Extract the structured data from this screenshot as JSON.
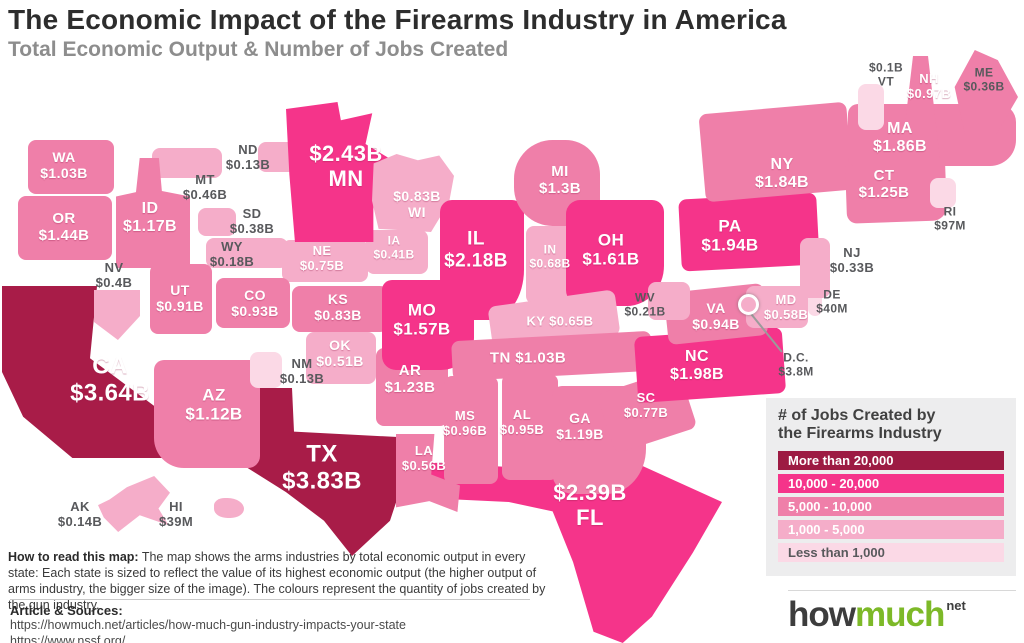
{
  "header": {
    "title": "The Economic Impact of the Firearms Industry in America",
    "subtitle": "Total Economic Output & Number of Jobs Created"
  },
  "legend": {
    "title_line1": "# of Jobs Created by",
    "title_line2": "the Firearms Industry",
    "items": [
      {
        "label": "More than 20,000",
        "color": "#9d1b43",
        "text": "#ffffff"
      },
      {
        "label": "10,000 - 20,000",
        "color": "#f5348a",
        "text": "#ffffff"
      },
      {
        "label": "5,000 - 10,000",
        "color": "#ef7fa9",
        "text": "#ffffff"
      },
      {
        "label": "1,000 - 5,000",
        "color": "#f5adc9",
        "text": "#ffffff"
      },
      {
        "label": "Less than 1,000",
        "color": "#fbd9e6",
        "text": "#58595c"
      }
    ]
  },
  "footer": {
    "how_to_label": "How to read this map:",
    "how_to_text": " The map shows the arms industries by total economic output in every state: Each state is sized to reflect the value of its highest economic output (the higher output of arms industry, the bigger size of the image). The colours represent the quantity of jobs created by the gun industry.",
    "sources_label": "Article & Sources:",
    "source_urls": [
      "https://howmuch.net/articles/how-much-gun-industry-impacts-your-state",
      "https://www.nssf.org/"
    ]
  },
  "logo": {
    "part1": "how",
    "part2": "much",
    "part3": "net",
    "green": "#7db928"
  },
  "colors": {
    "tier1": "#a81c48",
    "tier2": "#f5348a",
    "tier3": "#ef7fa9",
    "tier4": "#f5adc9",
    "tier5": "#fbd9e6",
    "label_gray": "#58595c"
  },
  "chart_data": {
    "type": "cartogram_map",
    "title": "The Economic Impact of the Firearms Industry in America",
    "value_meaning": "Total economic output of the firearms industry per state",
    "color_meaning": "Number of jobs created by the firearms industry",
    "jobs_tiers": {
      "tier1": "More than 20,000",
      "tier2": "10,000 - 20,000",
      "tier3": "5,000 - 10,000",
      "tier4": "1,000 - 5,000",
      "tier5": "Less than 1,000"
    },
    "states": [
      {
        "abbr": "AK",
        "value": "$0.14B",
        "tier": "tier4",
        "shape": "ak",
        "block": [
          98,
          476,
          72,
          56
        ],
        "label": [
          80,
          515
        ],
        "size": 13,
        "lines": [
          "AK",
          "$0.14B"
        ],
        "lc": "g"
      },
      {
        "abbr": "HI",
        "value": "$39M",
        "tier": "tier4",
        "shape": "hi",
        "block": [
          214,
          498,
          30,
          20
        ],
        "label": [
          176,
          515
        ],
        "size": 13,
        "lines": [
          "HI",
          "$39M"
        ],
        "lc": "g"
      },
      {
        "abbr": "FL",
        "value": "$2.39B",
        "tier": "tier2",
        "shape": "fl",
        "block": [
          430,
          455,
          292,
          188
        ],
        "label": [
          590,
          505
        ],
        "size": 22,
        "lines": [
          "$2.39B",
          "FL"
        ],
        "lc": "w"
      },
      {
        "abbr": "TX",
        "value": "$3.83B",
        "tier": "tier1",
        "shape": "tx",
        "block": [
          230,
          388,
          200,
          168
        ],
        "label": [
          322,
          468
        ],
        "size": 24,
        "lines": [
          "TX",
          "$3.83B"
        ],
        "lc": "w"
      },
      {
        "abbr": "CA",
        "value": "$3.64B",
        "tier": "tier1",
        "shape": "ca",
        "block": [
          2,
          286,
          176,
          172
        ],
        "label": [
          110,
          380
        ],
        "size": 24,
        "lines": [
          "CA",
          "$3.64B"
        ],
        "lc": "w"
      },
      {
        "abbr": "NV",
        "value": "$0.4B",
        "tier": "tier4",
        "shape": "nv",
        "block": [
          94,
          290,
          46,
          50
        ],
        "label": [
          114,
          276
        ],
        "size": 13,
        "lines": [
          "NV",
          "$0.4B"
        ],
        "lc": "g"
      },
      {
        "abbr": "AZ",
        "value": "$1.12B",
        "tier": "tier3",
        "shape": "az",
        "block": [
          154,
          360,
          106,
          108
        ],
        "label": [
          214,
          405
        ],
        "size": 17,
        "lines": [
          "AZ",
          "$1.12B"
        ],
        "lc": "w"
      },
      {
        "abbr": "NM",
        "value": "$0.13B",
        "tier": "tier5",
        "block": [
          250,
          352,
          32,
          36
        ],
        "label": [
          302,
          372
        ],
        "size": 13,
        "lines": [
          "NM",
          "$0.13B"
        ],
        "lc": "g"
      },
      {
        "abbr": "OK",
        "value": "$0.51B",
        "tier": "tier4",
        "block": [
          306,
          332,
          70,
          52
        ],
        "label": [
          340,
          354
        ],
        "size": 14,
        "lines": [
          "OK",
          "$0.51B"
        ],
        "lc": "w"
      },
      {
        "abbr": "AR",
        "value": "$1.23B",
        "tier": "tier3",
        "block": [
          376,
          348,
          72,
          78
        ],
        "label": [
          410,
          379
        ],
        "size": 15,
        "lines": [
          "AR",
          "$1.23B"
        ],
        "lc": "w"
      },
      {
        "abbr": "KS",
        "value": "$0.83B",
        "tier": "tier3",
        "block": [
          292,
          286,
          96,
          46
        ],
        "label": [
          338,
          308
        ],
        "size": 14,
        "lines": [
          "KS",
          "$0.83B"
        ],
        "lc": "w"
      },
      {
        "abbr": "NE",
        "value": "$0.75B",
        "tier": "tier4",
        "block": [
          282,
          240,
          86,
          42
        ],
        "label": [
          322,
          259
        ],
        "size": 13,
        "lines": [
          "NE",
          "$0.75B"
        ],
        "lc": "w"
      },
      {
        "abbr": "IA",
        "value": "$0.41B",
        "tier": "tier4",
        "block": [
          366,
          230,
          62,
          44
        ],
        "label": [
          394,
          248
        ],
        "size": 12,
        "lines": [
          "IA",
          "$0.41B"
        ],
        "lc": "w"
      },
      {
        "abbr": "WA",
        "value": "$1.03B",
        "tier": "tier3",
        "block": [
          28,
          140,
          86,
          54
        ],
        "label": [
          64,
          166
        ],
        "size": 14,
        "lines": [
          "WA",
          "$1.03B"
        ],
        "lc": "w"
      },
      {
        "abbr": "OR",
        "value": "$1.44B",
        "tier": "tier3",
        "block": [
          18,
          196,
          94,
          64
        ],
        "label": [
          64,
          227
        ],
        "size": 15,
        "lines": [
          "OR",
          "$1.44B"
        ],
        "lc": "w"
      },
      {
        "abbr": "MT",
        "value": "$0.46B",
        "tier": "tier4",
        "block": [
          152,
          148,
          70,
          30
        ],
        "label": [
          205,
          188
        ],
        "size": 13,
        "lines": [
          "MT",
          "$0.46B"
        ],
        "lc": "g"
      },
      {
        "abbr": "ND",
        "value": "$0.13B",
        "tier": "tier4",
        "block": [
          258,
          142,
          40,
          30
        ],
        "label": [
          248,
          158
        ],
        "size": 13,
        "lines": [
          "ND",
          "$0.13B"
        ],
        "lc": "g"
      },
      {
        "abbr": "SD",
        "value": "$0.38B",
        "tier": "tier4",
        "block": [
          198,
          208,
          38,
          28
        ],
        "label": [
          252,
          222
        ],
        "size": 13,
        "lines": [
          "SD",
          "$0.38B"
        ],
        "lc": "g"
      },
      {
        "abbr": "WY",
        "value": "$0.18B",
        "tier": "tier4",
        "block": [
          206,
          238,
          82,
          30
        ],
        "label": [
          232,
          255
        ],
        "size": 13,
        "lines": [
          "WY",
          "$0.18B"
        ],
        "lc": "g"
      },
      {
        "abbr": "UT",
        "value": "$0.91B",
        "tier": "tier3",
        "block": [
          150,
          264,
          62,
          70
        ],
        "label": [
          180,
          299
        ],
        "size": 14,
        "lines": [
          "UT",
          "$0.91B"
        ],
        "lc": "w"
      },
      {
        "abbr": "CO",
        "value": "$0.93B",
        "tier": "tier3",
        "block": [
          216,
          278,
          74,
          50
        ],
        "label": [
          255,
          304
        ],
        "size": 14,
        "lines": [
          "CO",
          "$0.93B"
        ],
        "lc": "w"
      },
      {
        "abbr": "ID",
        "value": "$1.17B",
        "tier": "tier3",
        "shape": "id",
        "block": [
          116,
          158,
          74,
          110
        ],
        "label": [
          150,
          218
        ],
        "size": 16,
        "lines": [
          "ID",
          "$1.17B"
        ],
        "lc": "w"
      },
      {
        "abbr": "MN",
        "value": "$2.43B",
        "tier": "tier2",
        "shape": "mn",
        "block": [
          286,
          102,
          112,
          140
        ],
        "label": [
          346,
          166
        ],
        "size": 22,
        "lines": [
          "$2.43B",
          "MN"
        ],
        "lc": "w"
      },
      {
        "abbr": "WI",
        "value": "$0.83B",
        "tier": "tier4",
        "shape": "wi",
        "block": [
          372,
          154,
          82,
          78
        ],
        "label": [
          417,
          205
        ],
        "size": 14,
        "lines": [
          "$0.83B",
          "WI"
        ],
        "lc": "w"
      },
      {
        "abbr": "IL",
        "value": "$2.18B",
        "tier": "tier2",
        "shape": "il",
        "block": [
          440,
          200,
          84,
          120
        ],
        "label": [
          476,
          250
        ],
        "size": 19,
        "lines": [
          "IL",
          "$2.18B"
        ],
        "lc": "w"
      },
      {
        "abbr": "MI",
        "value": "$1.3B",
        "tier": "tier3",
        "shape": "mi",
        "block": [
          514,
          140,
          86,
          86
        ],
        "label": [
          560,
          180
        ],
        "size": 15,
        "lines": [
          "MI",
          "$1.3B"
        ],
        "lc": "w"
      },
      {
        "abbr": "IN",
        "value": "$0.68B",
        "tier": "tier4",
        "block": [
          526,
          226,
          50,
          78
        ],
        "label": [
          550,
          257
        ],
        "size": 12,
        "lines": [
          "IN",
          "$0.68B"
        ],
        "lc": "w"
      },
      {
        "abbr": "MO",
        "value": "$1.57B",
        "tier": "tier2",
        "shape": "mo",
        "block": [
          382,
          280,
          92,
          90
        ],
        "label": [
          422,
          320
        ],
        "size": 17,
        "lines": [
          "MO",
          "$1.57B"
        ],
        "lc": "w"
      },
      {
        "abbr": "LA",
        "value": "$0.56B",
        "tier": "tier3",
        "shape": "la",
        "block": [
          396,
          434,
          64,
          78
        ],
        "label": [
          424,
          459
        ],
        "size": 13,
        "lines": [
          "LA",
          "$0.56B"
        ],
        "lc": "w"
      },
      {
        "abbr": "OH",
        "value": "$1.61B",
        "tier": "tier2",
        "shape": "oh",
        "block": [
          566,
          200,
          98,
          106
        ],
        "label": [
          611,
          250
        ],
        "size": 17,
        "lines": [
          "OH",
          "$1.61B"
        ],
        "lc": "w"
      },
      {
        "abbr": "KY",
        "value": "$0.65B",
        "tier": "tier4",
        "rot": -8,
        "block": [
          490,
          298,
          128,
          46
        ],
        "label": [
          560,
          322
        ],
        "size": 13,
        "lines": [
          "KY $0.65B"
        ],
        "lc": "w"
      },
      {
        "abbr": "TN",
        "value": "$1.03B",
        "tier": "tier3",
        "rot": -3,
        "block": [
          452,
          336,
          200,
          40
        ],
        "label": [
          528,
          358
        ],
        "size": 15,
        "lines": [
          "TN $1.03B"
        ],
        "lc": "w"
      },
      {
        "abbr": "MS",
        "value": "$0.96B",
        "tier": "tier3",
        "block": [
          444,
          376,
          54,
          108
        ],
        "label": [
          465,
          424
        ],
        "size": 13,
        "lines": [
          "MS",
          "$0.96B"
        ],
        "lc": "w"
      },
      {
        "abbr": "AL",
        "value": "$0.95B",
        "tier": "tier3",
        "block": [
          502,
          374,
          56,
          106
        ],
        "label": [
          522,
          423
        ],
        "size": 13,
        "lines": [
          "AL",
          "$0.95B"
        ],
        "lc": "w"
      },
      {
        "abbr": "GA",
        "value": "$1.19B",
        "tier": "tier3",
        "shape": "ga",
        "block": [
          552,
          386,
          94,
          108
        ],
        "label": [
          580,
          427
        ],
        "size": 14,
        "lines": [
          "GA",
          "$1.19B"
        ],
        "lc": "w"
      },
      {
        "abbr": "SC",
        "value": "$0.77B",
        "tier": "tier3",
        "rot": -18,
        "block": [
          604,
          380,
          86,
          62
        ],
        "label": [
          646,
          406
        ],
        "size": 13,
        "lines": [
          "SC",
          "$0.77B"
        ],
        "lc": "w"
      },
      {
        "abbr": "NC",
        "value": "$1.98B",
        "tier": "tier2",
        "rot": -4,
        "block": [
          636,
          332,
          148,
          66
        ],
        "label": [
          697,
          366
        ],
        "size": 16,
        "lines": [
          "NC",
          "$1.98B"
        ],
        "lc": "w"
      },
      {
        "abbr": "VA",
        "value": "$0.94B",
        "tier": "tier3",
        "rot": -6,
        "block": [
          666,
          288,
          100,
          52
        ],
        "label": [
          716,
          317
        ],
        "size": 14,
        "lines": [
          "VA",
          "$0.94B"
        ],
        "lc": "w"
      },
      {
        "abbr": "WV",
        "value": "$0.21B",
        "tier": "tier4",
        "block": [
          648,
          282,
          42,
          38
        ],
        "label": [
          645,
          305
        ],
        "size": 12,
        "lines": [
          "WV",
          "$0.21B"
        ],
        "lc": "g"
      },
      {
        "abbr": "PA",
        "value": "$1.94B",
        "tier": "tier2",
        "rot": -3,
        "block": [
          680,
          196,
          138,
          72
        ],
        "label": [
          730,
          236
        ],
        "size": 17,
        "lines": [
          "PA",
          "$1.94B"
        ],
        "lc": "w"
      },
      {
        "abbr": "MD",
        "value": "$0.58B",
        "tier": "tier4",
        "block": [
          746,
          286,
          62,
          42
        ],
        "label": [
          786,
          308
        ],
        "size": 13,
        "lines": [
          "MD",
          "$0.58B"
        ],
        "lc": "w"
      },
      {
        "abbr": "DE",
        "value": "$40M",
        "tier": "tier5",
        "block": [
          808,
          282,
          14,
          34
        ],
        "label": [
          832,
          302
        ],
        "size": 12,
        "lines": [
          "DE",
          "$40M"
        ],
        "lc": "g"
      },
      {
        "abbr": "NJ",
        "value": "$0.33B",
        "tier": "tier4",
        "block": [
          800,
          238,
          30,
          60
        ],
        "label": [
          852,
          261
        ],
        "size": 13,
        "lines": [
          "NJ",
          "$0.33B"
        ],
        "lc": "g"
      },
      {
        "abbr": "NY",
        "value": "$1.84B",
        "tier": "tier3",
        "rot": -5,
        "block": [
          702,
          108,
          148,
          88
        ],
        "label": [
          782,
          174
        ],
        "size": 16,
        "lines": [
          "NY",
          "$1.84B"
        ],
        "lc": "w"
      },
      {
        "abbr": "CT",
        "value": "$1.25B",
        "tier": "tier3",
        "shape": "ct",
        "rot": -2,
        "block": [
          846,
          158,
          100,
          64
        ],
        "label": [
          884,
          184
        ],
        "size": 15,
        "lines": [
          "CT",
          "$1.25B"
        ],
        "lc": "w"
      },
      {
        "abbr": "RI",
        "value": "$97M",
        "tier": "tier5",
        "block": [
          930,
          178,
          26,
          30
        ],
        "label": [
          950,
          219
        ],
        "size": 12,
        "lines": [
          "RI",
          "$97M"
        ],
        "lc": "g"
      },
      {
        "abbr": "MA",
        "value": "$1.86B",
        "tier": "tier3",
        "shape": "ma",
        "block": [
          848,
          104,
          168,
          62
        ],
        "label": [
          900,
          138
        ],
        "size": 16,
        "lines": [
          "MA",
          "$1.86B"
        ],
        "lc": "w"
      },
      {
        "abbr": "VT",
        "value": "$0.1B",
        "tier": "tier5",
        "block": [
          858,
          84,
          26,
          46
        ],
        "label": [
          886,
          75
        ],
        "size": 12,
        "lines": [
          "$0.1B",
          "VT"
        ],
        "lc": "g"
      },
      {
        "abbr": "NH",
        "value": "$0.97B",
        "tier": "tier3",
        "shape": "nh",
        "block": [
          896,
          56,
          50,
          102
        ],
        "label": [
          929,
          87
        ],
        "size": 13,
        "lines": [
          "NH",
          "$0.97B"
        ],
        "lc": "w"
      },
      {
        "abbr": "ME",
        "value": "$0.36B",
        "tier": "tier3",
        "shape": "me",
        "block": [
          946,
          50,
          72,
          84
        ],
        "label": [
          984,
          80
        ],
        "size": 12,
        "lines": [
          "ME",
          "$0.36B"
        ],
        "lc": "g"
      },
      {
        "abbr": "DC",
        "value": "$3.8M",
        "tier": "tier5",
        "block": null,
        "label": [
          796,
          365
        ],
        "size": 12,
        "lines": [
          "D.C.",
          "$3.8M"
        ],
        "lc": "g"
      }
    ]
  }
}
